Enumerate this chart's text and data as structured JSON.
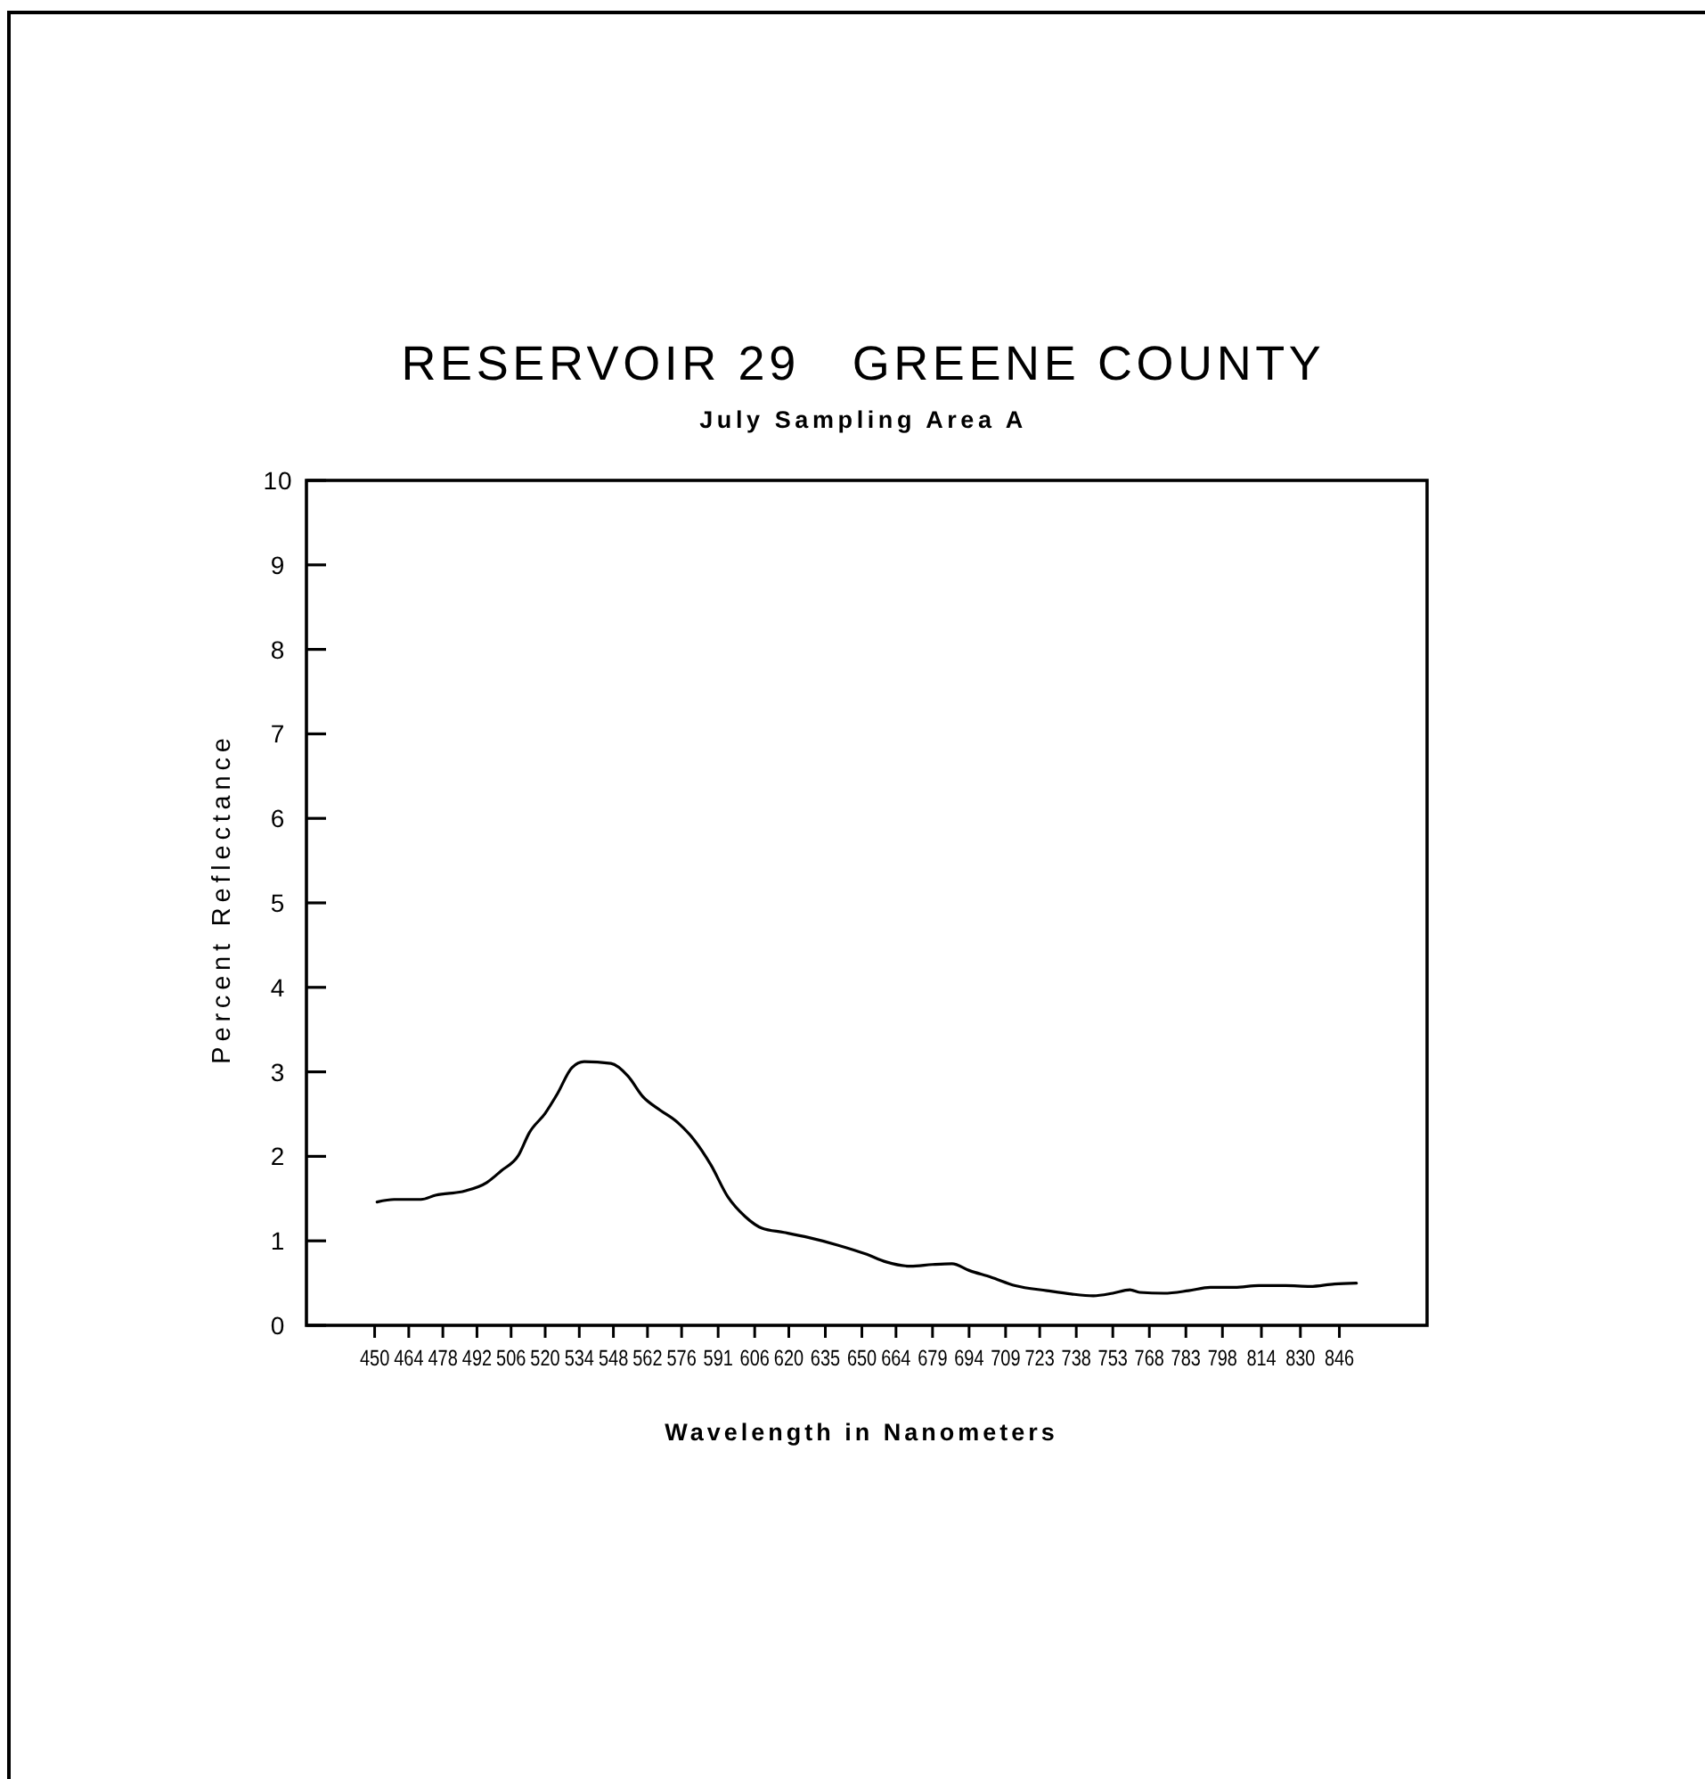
{
  "chart_data": {
    "type": "line",
    "title": "RESERVOIR 29   GREENE COUNTY",
    "subtitle": "July Sampling Area A",
    "xlabel": "Wavelength in Nanometers",
    "ylabel": "Percent Reflectance",
    "x": [
      451,
      458,
      469,
      475,
      487,
      496,
      502,
      509,
      513.5,
      520,
      525,
      531,
      536,
      547,
      554,
      560,
      567,
      574,
      581,
      588,
      595,
      602,
      609,
      618,
      628,
      640,
      652,
      660,
      670,
      679,
      687,
      694,
      703,
      713,
      726,
      736,
      745,
      753,
      760,
      764,
      774,
      784,
      793,
      803,
      813,
      824,
      834,
      844,
      853
    ],
    "series": [
      {
        "color": "#000000",
        "values": [
          1.46,
          1.49,
          1.49,
          1.54,
          1.59,
          1.69,
          1.83,
          2.01,
          2.28,
          2.51,
          2.74,
          3.05,
          3.12,
          3.1,
          2.95,
          2.71,
          2.55,
          2.41,
          2.2,
          1.9,
          1.52,
          1.29,
          1.15,
          1.1,
          1.04,
          0.95,
          0.84,
          0.75,
          0.7,
          0.72,
          0.73,
          0.65,
          0.57,
          0.47,
          0.41,
          0.37,
          0.35,
          0.38,
          0.42,
          0.39,
          0.38,
          0.41,
          0.45,
          0.45,
          0.47,
          0.47,
          0.46,
          0.49,
          0.5
        ]
      }
    ],
    "xlim": [
      422,
      882
    ],
    "xticks": [
      450,
      464,
      478,
      492,
      506,
      520,
      534,
      548,
      562,
      576,
      591,
      606,
      620,
      635,
      650,
      664,
      679,
      694,
      709,
      723,
      738,
      753,
      768,
      783,
      798,
      814,
      830,
      846
    ],
    "ylim": [
      0,
      10
    ],
    "yticks": [
      0,
      1,
      2,
      3,
      4,
      5,
      6,
      7,
      8,
      9,
      10
    ]
  }
}
